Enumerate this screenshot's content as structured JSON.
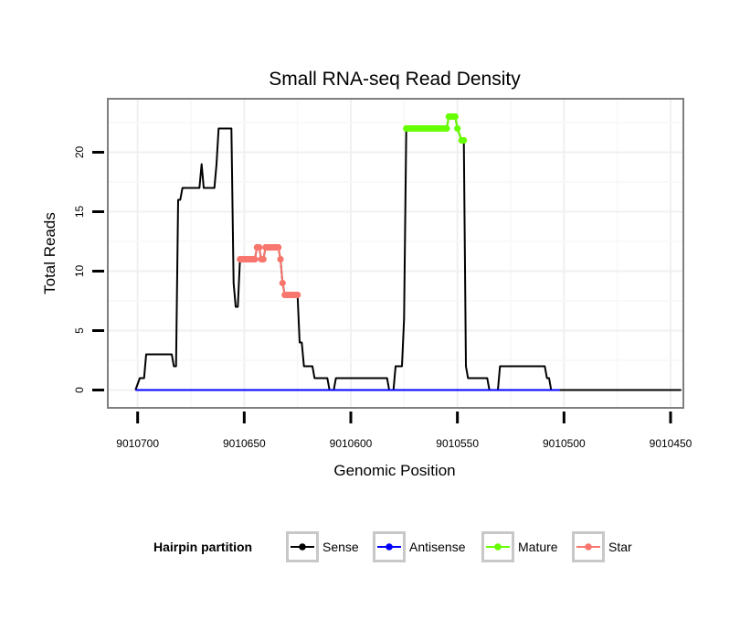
{
  "chart_data": {
    "type": "line",
    "title": "Small RNA-seq Read Density",
    "xlabel": "Genomic Position",
    "ylabel": "Total Reads",
    "x_reversed": true,
    "xlim": [
      9010714,
      9010444
    ],
    "ylim": [
      -1.5,
      24.5
    ],
    "x_ticks": [
      9010700,
      9010650,
      9010600,
      9010550,
      9010500,
      9010450
    ],
    "x_tick_labels": [
      "9010700",
      "9010650",
      "9010600",
      "9010550",
      "9010500",
      "9010450"
    ],
    "y_ticks": [
      0,
      5,
      10,
      15,
      20
    ],
    "y_tick_labels": [
      "0",
      "5",
      "10",
      "15",
      "20"
    ],
    "grid": true,
    "legend": {
      "title": "Hairpin partition",
      "position": "bottom",
      "entries": [
        {
          "name": "Sense",
          "color": "#000000"
        },
        {
          "name": "Antisense",
          "color": "#0000ff"
        },
        {
          "name": "Mature",
          "color": "#66ff00"
        },
        {
          "name": "Star",
          "color": "#f8766d"
        }
      ]
    },
    "series": [
      {
        "name": "Sense",
        "color": "#000000",
        "points": [
          [
            9010701,
            0
          ],
          [
            9010699,
            1
          ],
          [
            9010697,
            1
          ],
          [
            9010696,
            3
          ],
          [
            9010684,
            3
          ],
          [
            9010683,
            2
          ],
          [
            9010682,
            2
          ],
          [
            9010681,
            16
          ],
          [
            9010680,
            16
          ],
          [
            9010679,
            17
          ],
          [
            9010671,
            17
          ],
          [
            9010670,
            19
          ],
          [
            9010669,
            17
          ],
          [
            9010664,
            17
          ],
          [
            9010663,
            19
          ],
          [
            9010662,
            22
          ],
          [
            9010656,
            22
          ],
          [
            9010655,
            9
          ],
          [
            9010654,
            7
          ],
          [
            9010653,
            7
          ],
          [
            9010652,
            11
          ],
          [
            9010645,
            11
          ],
          [
            9010644,
            12
          ],
          [
            9010643,
            12
          ],
          [
            9010642,
            11
          ],
          [
            9010641,
            11
          ],
          [
            9010640,
            12
          ],
          [
            9010634,
            12
          ],
          [
            9010633,
            11
          ],
          [
            9010632,
            9
          ],
          [
            9010631,
            8
          ],
          [
            9010625,
            8
          ],
          [
            9010624,
            4
          ],
          [
            9010623,
            4
          ],
          [
            9010622,
            2
          ],
          [
            9010618,
            2
          ],
          [
            9010617,
            1
          ],
          [
            9010611,
            1
          ],
          [
            9010610,
            0
          ],
          [
            9010608,
            0
          ],
          [
            9010607,
            1
          ],
          [
            9010583,
            1
          ],
          [
            9010582,
            0
          ],
          [
            9010580,
            0
          ],
          [
            9010579,
            2
          ],
          [
            9010576,
            2
          ],
          [
            9010575,
            6
          ],
          [
            9010574,
            22
          ],
          [
            9010555,
            22
          ],
          [
            9010554,
            23
          ],
          [
            9010551,
            23
          ],
          [
            9010550,
            22
          ],
          [
            9010548,
            21
          ],
          [
            9010547,
            21
          ],
          [
            9010546,
            2
          ],
          [
            9010545,
            1
          ],
          [
            9010536,
            1
          ],
          [
            9010535,
            0
          ],
          [
            9010531,
            0
          ],
          [
            9010530,
            2
          ],
          [
            9010509,
            2
          ],
          [
            9010508,
            1
          ],
          [
            9010507,
            1
          ],
          [
            9010506,
            0
          ],
          [
            9010445,
            0
          ]
        ]
      },
      {
        "name": "Antisense",
        "color": "#0000ff",
        "points": [
          [
            9010701,
            0
          ],
          [
            9010502,
            0
          ]
        ]
      },
      {
        "name": "Mature",
        "color": "#66ff00",
        "points": [
          [
            9010574,
            22
          ],
          [
            9010573,
            22
          ],
          [
            9010572,
            22
          ],
          [
            9010571,
            22
          ],
          [
            9010570,
            22
          ],
          [
            9010569,
            22
          ],
          [
            9010568,
            22
          ],
          [
            9010567,
            22
          ],
          [
            9010566,
            22
          ],
          [
            9010565,
            22
          ],
          [
            9010564,
            22
          ],
          [
            9010563,
            22
          ],
          [
            9010562,
            22
          ],
          [
            9010561,
            22
          ],
          [
            9010560,
            22
          ],
          [
            9010559,
            22
          ],
          [
            9010558,
            22
          ],
          [
            9010557,
            22
          ],
          [
            9010556,
            22
          ],
          [
            9010555,
            22
          ],
          [
            9010554,
            23
          ],
          [
            9010553,
            23
          ],
          [
            9010552,
            23
          ],
          [
            9010551,
            23
          ],
          [
            9010550,
            22
          ],
          [
            9010548,
            21
          ],
          [
            9010547,
            21
          ]
        ]
      },
      {
        "name": "Star",
        "color": "#f8766d",
        "points": [
          [
            9010652,
            11
          ],
          [
            9010651,
            11
          ],
          [
            9010650,
            11
          ],
          [
            9010649,
            11
          ],
          [
            9010648,
            11
          ],
          [
            9010647,
            11
          ],
          [
            9010646,
            11
          ],
          [
            9010645,
            11
          ],
          [
            9010644,
            12
          ],
          [
            9010643,
            12
          ],
          [
            9010642,
            11
          ],
          [
            9010641,
            11
          ],
          [
            9010640,
            12
          ],
          [
            9010639,
            12
          ],
          [
            9010638,
            12
          ],
          [
            9010637,
            12
          ],
          [
            9010636,
            12
          ],
          [
            9010635,
            12
          ],
          [
            9010634,
            12
          ],
          [
            9010633,
            11
          ],
          [
            9010632,
            9
          ],
          [
            9010631,
            8
          ],
          [
            9010630,
            8
          ],
          [
            9010629,
            8
          ],
          [
            9010628,
            8
          ],
          [
            9010627,
            8
          ],
          [
            9010626,
            8
          ],
          [
            9010625,
            8
          ]
        ]
      }
    ]
  }
}
